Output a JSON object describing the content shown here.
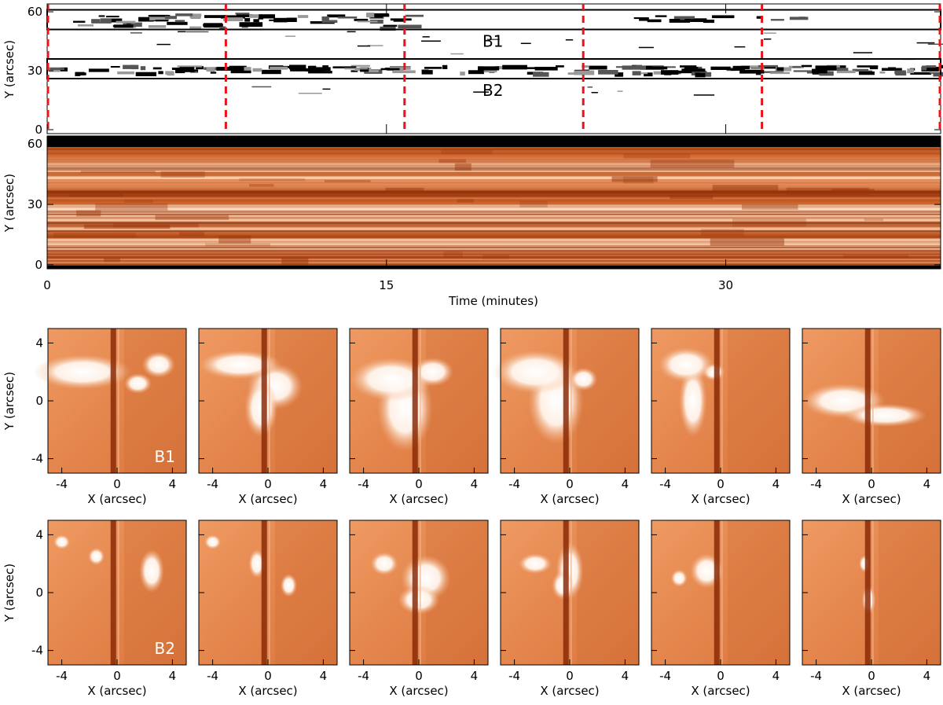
{
  "figure": {
    "top_panel": {
      "ylabel": "Y (arcsec)",
      "yticks": [
        0,
        30,
        60
      ],
      "ylim": [
        -2,
        64
      ],
      "box_labels": [
        "B1",
        "B2"
      ],
      "boxes": [
        {
          "name": "B1",
          "y_range": [
            51,
            61
          ]
        },
        {
          "name": "B2",
          "y_range": [
            26,
            36
          ]
        }
      ],
      "dashed_lines_time": [
        0,
        7.9,
        15.8,
        23.7,
        31.6,
        39.5
      ],
      "dashed_color": "#e8141b"
    },
    "middle_panel": {
      "ylabel": "Y (arcsec)",
      "yticks": [
        0,
        30,
        60
      ],
      "xlabel": "Time (minutes)",
      "xticks": [
        0,
        15,
        30
      ],
      "xlim": [
        0,
        39.5
      ],
      "ylim": [
        -2,
        64
      ]
    },
    "thumb_rows": [
      {
        "label": "B1",
        "ylabel": "Y (arcsec)",
        "xlabel": "X (arcsec)",
        "xticks": [
          -4,
          0,
          4
        ],
        "yticks": [
          -4,
          0,
          4
        ]
      },
      {
        "label": "B2",
        "ylabel": "Y (arcsec)",
        "xlabel": "X (arcsec)",
        "xticks": [
          -4,
          0,
          4
        ],
        "yticks": [
          -4,
          0,
          4
        ]
      }
    ],
    "colors": {
      "image_base": "#e07f45",
      "image_bright": "#fff4ea",
      "image_dark": "#8a2a08"
    }
  }
}
